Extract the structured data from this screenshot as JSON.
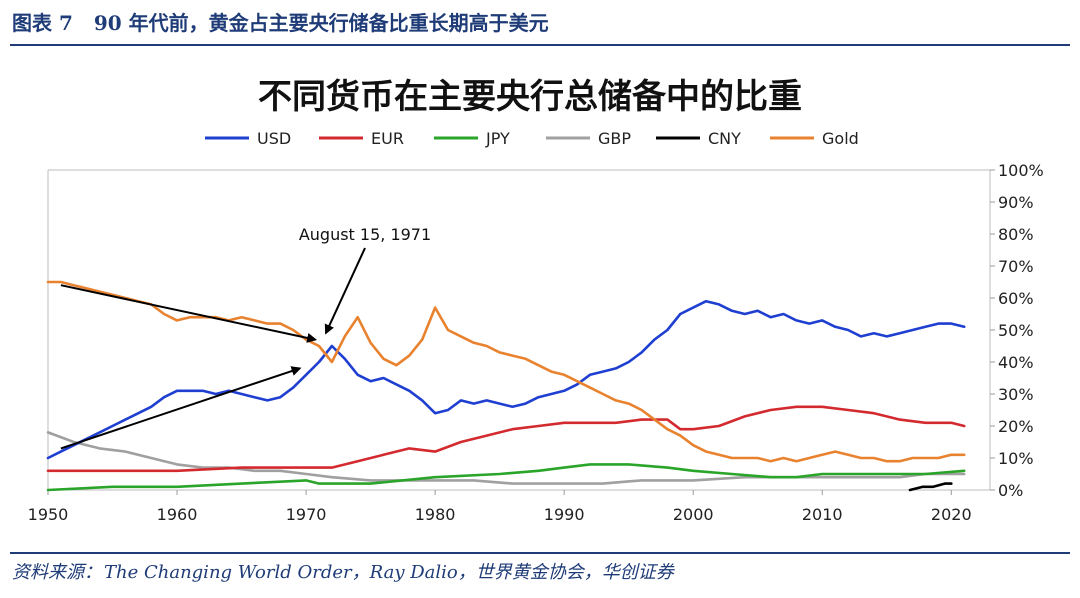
{
  "figure": {
    "number": "图表 7",
    "caption": "90 年代前，黄金占主要央行储备比重长期高于美元"
  },
  "source": {
    "label": "资料来源：",
    "text": "The Changing World Order，Ray Dalio，世界黄金协会，华创证券"
  },
  "chart_data": {
    "type": "line",
    "title": "不同货币在主要央行总储备中的比重",
    "xlabel": "",
    "ylabel": "",
    "xlim": [
      1950,
      2023
    ],
    "ylim": [
      0,
      100
    ],
    "x_ticks": [
      1950,
      1960,
      1970,
      1980,
      1990,
      2000,
      2010,
      2020
    ],
    "y_ticks": [
      0,
      10,
      20,
      30,
      40,
      50,
      60,
      70,
      80,
      90,
      100
    ],
    "y_tick_labels": [
      "0%",
      "10%",
      "20%",
      "30%",
      "40%",
      "50%",
      "60%",
      "70%",
      "80%",
      "90%",
      "100%"
    ],
    "legend_position": "top-center",
    "grid": false,
    "series": [
      {
        "name": "USD",
        "color": "#1f3fd1",
        "points": [
          [
            1950,
            10
          ],
          [
            1951,
            12
          ],
          [
            1952,
            14
          ],
          [
            1953,
            16
          ],
          [
            1954,
            18
          ],
          [
            1955,
            20
          ],
          [
            1956,
            22
          ],
          [
            1957,
            24
          ],
          [
            1958,
            26
          ],
          [
            1959,
            29
          ],
          [
            1960,
            31
          ],
          [
            1961,
            31
          ],
          [
            1962,
            31
          ],
          [
            1963,
            30
          ],
          [
            1964,
            31
          ],
          [
            1965,
            30
          ],
          [
            1966,
            29
          ],
          [
            1967,
            28
          ],
          [
            1968,
            29
          ],
          [
            1969,
            32
          ],
          [
            1970,
            36
          ],
          [
            1971,
            40
          ],
          [
            1972,
            45
          ],
          [
            1973,
            41
          ],
          [
            1974,
            36
          ],
          [
            1975,
            34
          ],
          [
            1976,
            35
          ],
          [
            1977,
            33
          ],
          [
            1978,
            31
          ],
          [
            1979,
            28
          ],
          [
            1980,
            24
          ],
          [
            1981,
            25
          ],
          [
            1982,
            28
          ],
          [
            1983,
            27
          ],
          [
            1984,
            28
          ],
          [
            1985,
            27
          ],
          [
            1986,
            26
          ],
          [
            1987,
            27
          ],
          [
            1988,
            29
          ],
          [
            1989,
            30
          ],
          [
            1990,
            31
          ],
          [
            1991,
            33
          ],
          [
            1992,
            36
          ],
          [
            1993,
            37
          ],
          [
            1994,
            38
          ],
          [
            1995,
            40
          ],
          [
            1996,
            43
          ],
          [
            1997,
            47
          ],
          [
            1998,
            50
          ],
          [
            1999,
            55
          ],
          [
            2000,
            57
          ],
          [
            2001,
            59
          ],
          [
            2002,
            58
          ],
          [
            2003,
            56
          ],
          [
            2004,
            55
          ],
          [
            2005,
            56
          ],
          [
            2006,
            54
          ],
          [
            2007,
            55
          ],
          [
            2008,
            53
          ],
          [
            2009,
            52
          ],
          [
            2010,
            53
          ],
          [
            2011,
            51
          ],
          [
            2012,
            50
          ],
          [
            2013,
            48
          ],
          [
            2014,
            49
          ],
          [
            2015,
            48
          ],
          [
            2016,
            49
          ],
          [
            2017,
            50
          ],
          [
            2018,
            51
          ],
          [
            2019,
            52
          ],
          [
            2020,
            52
          ],
          [
            2021,
            51
          ]
        ]
      },
      {
        "name": "EUR",
        "color": "#d32a2f",
        "points": [
          [
            1950,
            6
          ],
          [
            1955,
            6
          ],
          [
            1960,
            6
          ],
          [
            1965,
            7
          ],
          [
            1970,
            7
          ],
          [
            1972,
            7
          ],
          [
            1974,
            9
          ],
          [
            1976,
            11
          ],
          [
            1978,
            13
          ],
          [
            1980,
            12
          ],
          [
            1982,
            15
          ],
          [
            1984,
            17
          ],
          [
            1986,
            19
          ],
          [
            1988,
            20
          ],
          [
            1990,
            21
          ],
          [
            1992,
            21
          ],
          [
            1994,
            21
          ],
          [
            1996,
            22
          ],
          [
            1998,
            22
          ],
          [
            1999,
            19
          ],
          [
            2000,
            19
          ],
          [
            2002,
            20
          ],
          [
            2004,
            23
          ],
          [
            2006,
            25
          ],
          [
            2008,
            26
          ],
          [
            2010,
            26
          ],
          [
            2012,
            25
          ],
          [
            2014,
            24
          ],
          [
            2016,
            22
          ],
          [
            2018,
            21
          ],
          [
            2020,
            21
          ],
          [
            2021,
            20
          ]
        ]
      },
      {
        "name": "JPY",
        "color": "#2aa52a",
        "points": [
          [
            1950,
            0
          ],
          [
            1955,
            1
          ],
          [
            1960,
            1
          ],
          [
            1965,
            2
          ],
          [
            1970,
            3
          ],
          [
            1971,
            2
          ],
          [
            1975,
            2
          ],
          [
            1980,
            4
          ],
          [
            1985,
            5
          ],
          [
            1988,
            6
          ],
          [
            1990,
            7
          ],
          [
            1992,
            8
          ],
          [
            1995,
            8
          ],
          [
            1998,
            7
          ],
          [
            2000,
            6
          ],
          [
            2003,
            5
          ],
          [
            2006,
            4
          ],
          [
            2008,
            4
          ],
          [
            2010,
            5
          ],
          [
            2012,
            5
          ],
          [
            2015,
            5
          ],
          [
            2018,
            5
          ],
          [
            2021,
            6
          ]
        ]
      },
      {
        "name": "GBP",
        "color": "#a0a0a0",
        "points": [
          [
            1950,
            18
          ],
          [
            1952,
            15
          ],
          [
            1954,
            13
          ],
          [
            1956,
            12
          ],
          [
            1958,
            10
          ],
          [
            1960,
            8
          ],
          [
            1962,
            7
          ],
          [
            1964,
            7
          ],
          [
            1966,
            6
          ],
          [
            1968,
            6
          ],
          [
            1970,
            5
          ],
          [
            1972,
            4
          ],
          [
            1975,
            3
          ],
          [
            1978,
            3
          ],
          [
            1980,
            3
          ],
          [
            1983,
            3
          ],
          [
            1986,
            2
          ],
          [
            1990,
            2
          ],
          [
            1993,
            2
          ],
          [
            1996,
            3
          ],
          [
            2000,
            3
          ],
          [
            2004,
            4
          ],
          [
            2008,
            4
          ],
          [
            2012,
            4
          ],
          [
            2016,
            4
          ],
          [
            2018,
            5
          ],
          [
            2021,
            5
          ]
        ]
      },
      {
        "name": "CNY",
        "color": "#000000",
        "points": [
          [
            2016.8,
            0
          ],
          [
            2017.8,
            1
          ],
          [
            2018.6,
            1
          ],
          [
            2019.5,
            2
          ],
          [
            2020,
            2
          ]
        ]
      },
      {
        "name": "Gold",
        "color": "#e9822f",
        "points": [
          [
            1950,
            65
          ],
          [
            1951,
            65
          ],
          [
            1952,
            64
          ],
          [
            1953,
            63
          ],
          [
            1954,
            62
          ],
          [
            1955,
            61
          ],
          [
            1956,
            60
          ],
          [
            1957,
            59
          ],
          [
            1958,
            58
          ],
          [
            1959,
            55
          ],
          [
            1960,
            53
          ],
          [
            1961,
            54
          ],
          [
            1962,
            54
          ],
          [
            1963,
            54
          ],
          [
            1964,
            53
          ],
          [
            1965,
            54
          ],
          [
            1966,
            53
          ],
          [
            1967,
            52
          ],
          [
            1968,
            52
          ],
          [
            1969,
            50
          ],
          [
            1970,
            47
          ],
          [
            1971,
            45
          ],
          [
            1972,
            40
          ],
          [
            1973,
            48
          ],
          [
            1974,
            54
          ],
          [
            1975,
            46
          ],
          [
            1976,
            41
          ],
          [
            1977,
            39
          ],
          [
            1978,
            42
          ],
          [
            1979,
            47
          ],
          [
            1980,
            57
          ],
          [
            1981,
            50
          ],
          [
            1982,
            48
          ],
          [
            1983,
            46
          ],
          [
            1984,
            45
          ],
          [
            1985,
            43
          ],
          [
            1986,
            42
          ],
          [
            1987,
            41
          ],
          [
            1988,
            39
          ],
          [
            1989,
            37
          ],
          [
            1990,
            36
          ],
          [
            1991,
            34
          ],
          [
            1992,
            32
          ],
          [
            1993,
            30
          ],
          [
            1994,
            28
          ],
          [
            1995,
            27
          ],
          [
            1996,
            25
          ],
          [
            1997,
            22
          ],
          [
            1998,
            19
          ],
          [
            1999,
            17
          ],
          [
            2000,
            14
          ],
          [
            2001,
            12
          ],
          [
            2002,
            11
          ],
          [
            2003,
            10
          ],
          [
            2004,
            10
          ],
          [
            2005,
            10
          ],
          [
            2006,
            9
          ],
          [
            2007,
            10
          ],
          [
            2008,
            9
          ],
          [
            2009,
            10
          ],
          [
            2010,
            11
          ],
          [
            2011,
            12
          ],
          [
            2012,
            11
          ],
          [
            2013,
            10
          ],
          [
            2014,
            10
          ],
          [
            2015,
            9
          ],
          [
            2016,
            9
          ],
          [
            2017,
            10
          ],
          [
            2018,
            10
          ],
          [
            2019,
            10
          ],
          [
            2020,
            11
          ],
          [
            2021,
            11
          ]
        ]
      }
    ],
    "annotations": [
      {
        "text": "August 15, 1971",
        "target": [
          1971.7,
          46
        ]
      }
    ],
    "arrows": [
      {
        "from": [
          1951,
          64
        ],
        "to": [
          1970.7,
          47
        ]
      },
      {
        "from": [
          1951,
          13
        ],
        "to": [
          1969.5,
          38
        ]
      }
    ]
  }
}
